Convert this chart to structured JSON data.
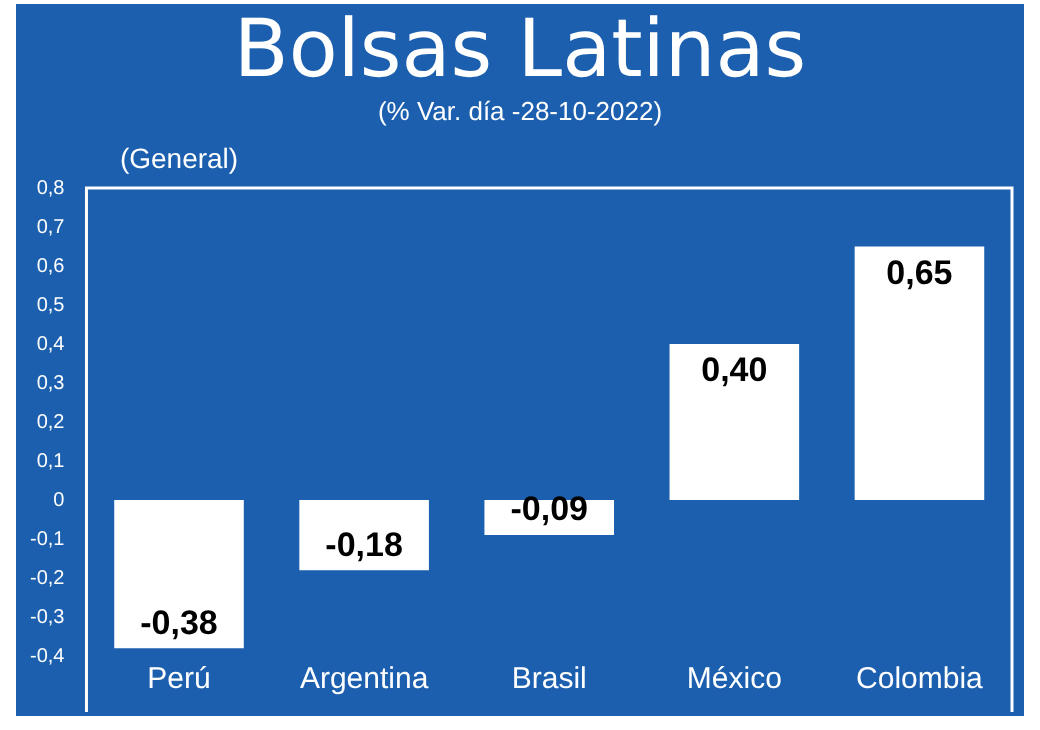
{
  "chart_data": {
    "type": "bar",
    "title": "Bolsas Latinas",
    "subtitle": "(% Var. día -28-10-2022)",
    "categories": [
      "Perú",
      "Argentina",
      "Brasil",
      "México",
      "Colombia"
    ],
    "values": [
      -0.38,
      -0.18,
      -0.09,
      0.4,
      0.65
    ],
    "value_labels": [
      "-0,38",
      "-0,18",
      "-0,09",
      "0,40",
      "0,65"
    ],
    "color": "#ffffff",
    "ylim": [
      -0.4,
      0.8
    ],
    "yticks": [
      {
        "value": -0.4,
        "label": "-0,4"
      },
      {
        "value": -0.3,
        "label": "-0,3"
      },
      {
        "value": -0.2,
        "label": "-0,2"
      },
      {
        "value": -0.1,
        "label": "-0,1"
      },
      0,
      {
        "value": 0.1,
        "label": "0,1"
      },
      {
        "value": 0.2,
        "label": "0,2"
      },
      {
        "value": 0.3,
        "label": "0,3"
      },
      {
        "value": 0.4,
        "label": "0,4"
      },
      {
        "value": 0.5,
        "label": "0,5"
      },
      {
        "value": 0.6,
        "label": "0,6"
      },
      {
        "value": 0.7,
        "label": "0,7"
      },
      {
        "value": 0.8,
        "label": "0,8"
      }
    ],
    "annotations": [
      "(General)"
    ],
    "grid": false,
    "legend": false
  }
}
